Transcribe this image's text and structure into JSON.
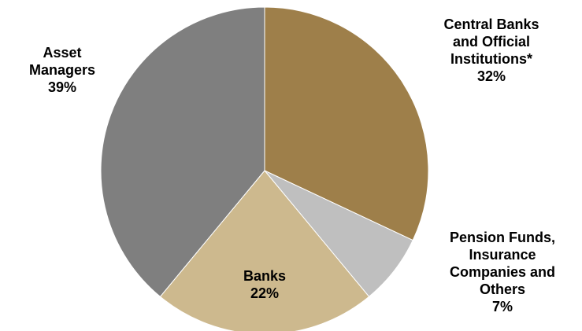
{
  "chart_data": {
    "type": "pie",
    "title": "",
    "slices": [
      {
        "label_lines": [
          "Central Banks",
          "and Official",
          "Institutions*"
        ],
        "value_label": "32%",
        "value": 32,
        "color": "#9E7F4A"
      },
      {
        "label_lines": [
          "Pension Funds,",
          "Insurance",
          "Companies and",
          "Others"
        ],
        "value_label": "7%",
        "value": 7,
        "color": "#BFBFBF"
      },
      {
        "label_lines": [
          "Banks"
        ],
        "value_label": "22%",
        "value": 22,
        "color": "#CDB98E"
      },
      {
        "label_lines": [
          "Asset",
          "Managers"
        ],
        "value_label": "39%",
        "value": 39,
        "color": "#7F7F7F"
      }
    ]
  }
}
